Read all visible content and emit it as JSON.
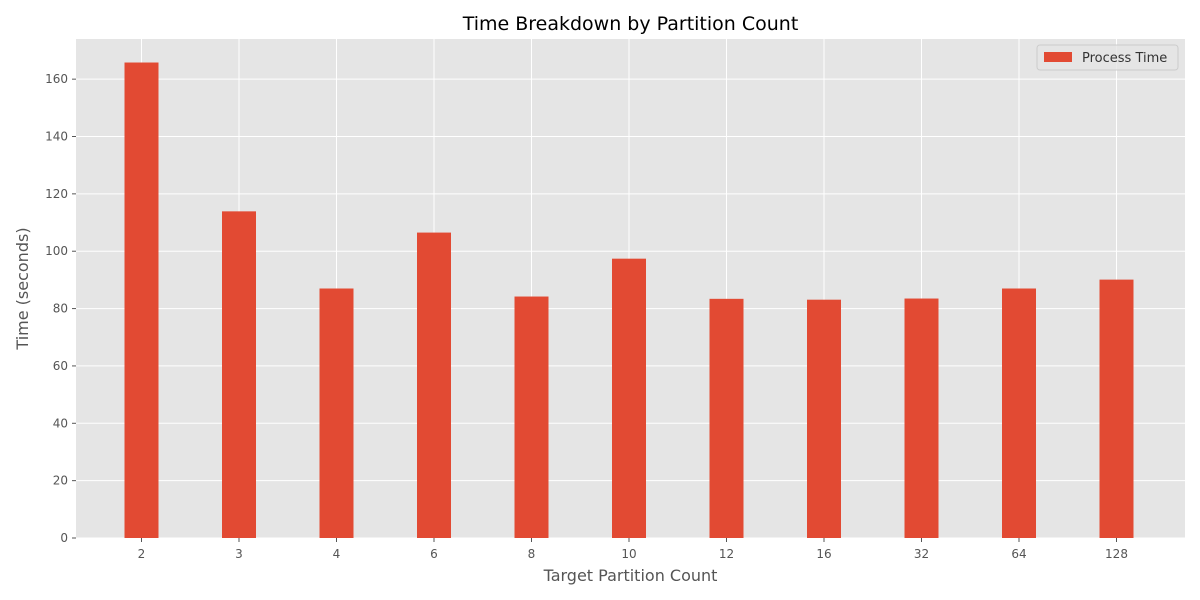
{
  "chart_data": {
    "type": "bar",
    "title": "Time Breakdown by Partition Count",
    "xlabel": "Target Partition Count",
    "ylabel": "Time (seconds)",
    "categories": [
      "2",
      "3",
      "4",
      "6",
      "8",
      "10",
      "12",
      "16",
      "32",
      "64",
      "128"
    ],
    "series": [
      {
        "name": "Process Time",
        "values": [
          165.8,
          113.9,
          87.0,
          106.5,
          84.2,
          97.4,
          83.4,
          83.1,
          83.5,
          87.0,
          90.1
        ]
      }
    ],
    "ylim": [
      0,
      174
    ],
    "yticks": [
      0,
      20,
      40,
      60,
      80,
      100,
      120,
      140,
      160
    ],
    "grid": true,
    "legend_position": "top-right",
    "colors": {
      "bar": "#e24a33",
      "plot_background": "#e5e5e5",
      "grid": "#ffffff"
    }
  }
}
